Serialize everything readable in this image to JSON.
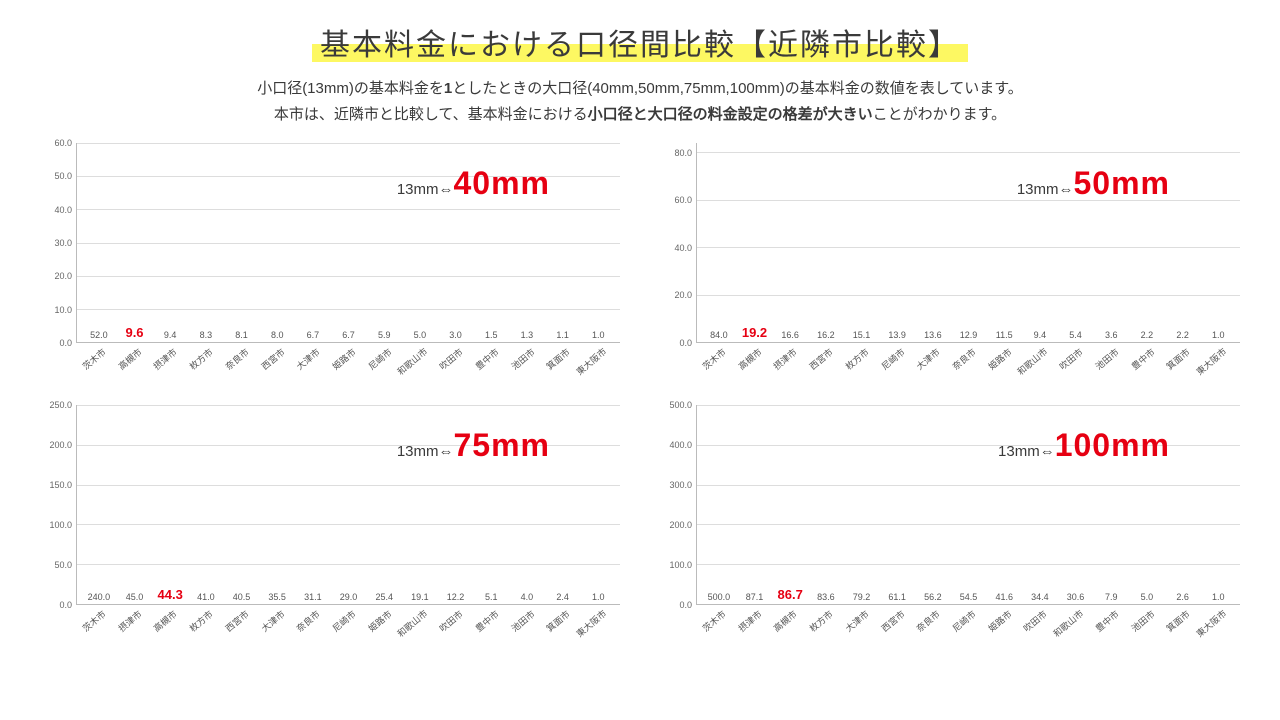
{
  "title": "基本料金における口径間比較【近隣市比較】",
  "subtitle_line1_a": "小口径(13mm)の基本料金を",
  "subtitle_line1_b": "1",
  "subtitle_line1_c": "としたときの大口径(40mm,50mm,75mm,100mm)の基本料金の数値を表しています。",
  "subtitle_line2_a": "本市は、近隣市と比較して、基本料金における",
  "subtitle_line2_b": "小口径と大口径の料金設定の格差が大きい",
  "subtitle_line2_c": "ことがわかります。",
  "colors": {
    "bar": "#d0d0d0",
    "highlight": "#ec4694",
    "grid": "#ddd",
    "axis": "#bbb"
  },
  "charts": [
    {
      "label_prefix": "13mm⇔",
      "label_mm": "40mm",
      "ylim": [
        0,
        60
      ],
      "ystep": 10,
      "categories": [
        "茨木市",
        "高槻市",
        "摂津市",
        "枚方市",
        "奈良市",
        "西宮市",
        "大津市",
        "姫路市",
        "尼崎市",
        "和歌山市",
        "吹田市",
        "豊中市",
        "池田市",
        "箕面市",
        "東大阪市"
      ],
      "values": [
        52.0,
        9.6,
        9.4,
        8.3,
        8.1,
        8.0,
        6.7,
        6.7,
        5.9,
        5.0,
        3.0,
        1.5,
        1.3,
        1.1,
        1.0
      ],
      "highlight_index": 1
    },
    {
      "label_prefix": "13mm⇔",
      "label_mm": "50mm",
      "ylim": [
        0,
        84
      ],
      "ystep": 20,
      "categories": [
        "茨木市",
        "高槻市",
        "摂津市",
        "西宮市",
        "枚方市",
        "尼崎市",
        "大津市",
        "奈良市",
        "姫路市",
        "和歌山市",
        "吹田市",
        "池田市",
        "豊中市",
        "箕面市",
        "東大阪市"
      ],
      "values": [
        84.0,
        19.2,
        16.6,
        16.2,
        15.1,
        13.9,
        13.6,
        12.9,
        11.5,
        9.4,
        5.4,
        3.6,
        2.2,
        2.2,
        1.0
      ],
      "highlight_index": 1
    },
    {
      "label_prefix": "13mm⇔",
      "label_mm": "75mm",
      "ylim": [
        0,
        250
      ],
      "ystep": 50,
      "categories": [
        "茨木市",
        "摂津市",
        "高槻市",
        "枚方市",
        "西宮市",
        "大津市",
        "奈良市",
        "尼崎市",
        "姫路市",
        "和歌山市",
        "吹田市",
        "豊中市",
        "池田市",
        "箕面市",
        "東大阪市"
      ],
      "values": [
        240.0,
        45.0,
        44.3,
        41.0,
        40.5,
        35.5,
        31.1,
        29.0,
        25.4,
        19.1,
        12.2,
        5.1,
        4.0,
        2.4,
        1.0
      ],
      "highlight_index": 2
    },
    {
      "label_prefix": "13mm⇔",
      "label_mm": "100mm",
      "ylim": [
        0,
        500
      ],
      "ystep": 100,
      "categories": [
        "茨木市",
        "摂津市",
        "高槻市",
        "枚方市",
        "大津市",
        "西宮市",
        "奈良市",
        "尼崎市",
        "姫路市",
        "吹田市",
        "和歌山市",
        "豊中市",
        "池田市",
        "箕面市",
        "東大阪市"
      ],
      "values": [
        500.0,
        87.1,
        86.7,
        83.6,
        79.2,
        61.1,
        56.2,
        54.5,
        41.6,
        34.4,
        30.6,
        7.9,
        5.0,
        2.6,
        1.0
      ],
      "highlight_index": 2
    }
  ]
}
